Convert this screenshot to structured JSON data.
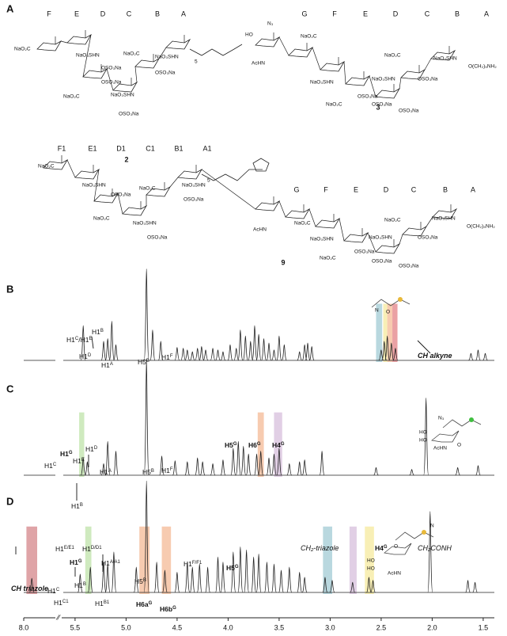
{
  "panel_labels": [
    "A",
    "B",
    "C",
    "D"
  ],
  "structures": [
    {
      "number": "2",
      "rings": [
        "F",
        "E",
        "D",
        "C",
        "B",
        "A"
      ],
      "labels": [
        "NaO₂C",
        "NaO₃SHN",
        "OSO₃Na",
        "NaO₂C",
        "NaO₃SHN",
        "OSO₃Na",
        "NaO₂C",
        "NaO₃SHN",
        "OSO₃Na",
        "OSO₃Na",
        "5"
      ]
    },
    {
      "number": "3",
      "rings": [
        "G",
        "F",
        "E",
        "D",
        "C",
        "B",
        "A"
      ],
      "labels": [
        "N₃",
        "HO",
        "AcHN",
        "NaO₂C",
        "NaO₃SHN",
        "OSO₃Na",
        "NaO₂C",
        "NaO₃SHN",
        "OSO₃Na",
        "NaO₂C",
        "NaO₃SHN",
        "OSO₃Na",
        "O(CH₂)₅NH₂",
        "OSO₃Na"
      ]
    },
    {
      "number": "9",
      "rings": [
        "F1",
        "E1",
        "D1",
        "C1",
        "B1",
        "A1",
        "G",
        "F",
        "E",
        "D",
        "C",
        "B",
        "A"
      ],
      "labels": [
        "NaO₂C",
        "NaO₃SHN",
        "OSO₃Na",
        "NaO₂C",
        "NaO₃SHN",
        "OSO₃Na",
        "NaO₂C",
        "NaO₃SHN",
        "OSO₃Na",
        "5",
        "AcHN",
        "NaO₂C",
        "NaO₃SHN",
        "OSO₃Na",
        "NaO₂C",
        "NaO₃SHN",
        "OSO₃Na",
        "NaO₂C",
        "NaO₃SHN",
        "OSO₃Na",
        "O(CH₂)₅NH₂",
        "OSO₃Na"
      ]
    }
  ],
  "chart_data": {
    "type": "nmr",
    "xlim": [
      1.5,
      8.0
    ],
    "xbreak": [
      7.5,
      5.6
    ],
    "xticks": [
      {
        "value": 8.0,
        "label": "8.0"
      },
      {
        "value": 5.5,
        "label": "5.5"
      },
      {
        "value": 5.0,
        "label": "5.0"
      },
      {
        "value": 4.5,
        "label": "4.5"
      },
      {
        "value": 4.0,
        "label": "4.0"
      },
      {
        "value": 3.5,
        "label": "3.5"
      },
      {
        "value": 3.0,
        "label": "3.0"
      },
      {
        "value": 2.5,
        "label": "2.5"
      },
      {
        "value": 2.0,
        "label": "2.0"
      },
      {
        "value": 1.5,
        "label": "1.5"
      }
    ],
    "spectra": [
      {
        "name": "B",
        "x": [
          5.42,
          5.22,
          5.18,
          5.14,
          5.1,
          4.8,
          4.74,
          4.66,
          4.5,
          4.44,
          4.4,
          4.35,
          4.3,
          4.26,
          4.22,
          4.15,
          4.1,
          4.05,
          3.98,
          3.92,
          3.88,
          3.83,
          3.78,
          3.74,
          3.7,
          3.65,
          3.6,
          3.55,
          3.5,
          3.45,
          3.3,
          3.25,
          3.22,
          3.18,
          2.5,
          2.47,
          2.44,
          2.4,
          2.36,
          1.62,
          1.55,
          1.48
        ],
        "values": [
          40,
          22,
          25,
          45,
          18,
          105,
          35,
          22,
          15,
          14,
          12,
          10,
          14,
          16,
          12,
          14,
          12,
          10,
          18,
          14,
          35,
          28,
          22,
          40,
          30,
          25,
          20,
          12,
          28,
          18,
          10,
          18,
          20,
          16,
          12,
          22,
          28,
          20,
          14,
          8,
          12,
          8
        ],
        "highlights": [
          {
            "x": [
              2.55,
              2.49
            ],
            "color": "#7fb8c4"
          },
          {
            "x": [
              2.48,
              2.44
            ],
            "color": "#f2e27a"
          },
          {
            "x": [
              2.44,
              2.39
            ],
            "color": "#f0a070"
          },
          {
            "x": [
              2.39,
              2.34
            ],
            "color": "#d9535a"
          }
        ],
        "annotations": [
          {
            "parts": [
              "H1",
              "C",
              "/H1",
              "E"
            ]
          },
          {
            "parts": [
              "H1",
              "D"
            ]
          },
          {
            "parts": [
              "H1",
              "B"
            ]
          },
          {
            "parts": [
              "H1",
              "A"
            ]
          },
          {
            "parts": [
              "H5",
              "B"
            ]
          },
          {
            "parts": [
              "H1",
              "F"
            ]
          },
          {
            "parts": [
              "CH alkyne"
            ]
          }
        ],
        "inset_labels": [
          "O",
          "N"
        ]
      },
      {
        "name": "C",
        "x": [
          5.42,
          5.38,
          5.22,
          5.18,
          5.1,
          4.8,
          4.65,
          4.52,
          4.4,
          4.3,
          4.25,
          4.15,
          4.05,
          3.95,
          3.9,
          3.85,
          3.8,
          3.72,
          3.68,
          3.6,
          3.55,
          3.5,
          3.4,
          3.3,
          3.25,
          3.08,
          2.55,
          2.2,
          2.06,
          1.75,
          1.55
        ],
        "values": [
          18,
          14,
          12,
          35,
          25,
          120,
          20,
          15,
          14,
          18,
          14,
          12,
          16,
          28,
          35,
          30,
          22,
          22,
          25,
          18,
          22,
          28,
          12,
          14,
          16,
          25,
          8,
          6,
          80,
          8,
          10
        ],
        "highlights": [
          {
            "x": [
              5.46,
              5.41
            ],
            "color": "#a8d88a"
          },
          {
            "x": [
              3.71,
              3.65
            ],
            "color": "#f0a070"
          },
          {
            "x": [
              3.55,
              3.47
            ],
            "color": "#c9a8cf"
          }
        ],
        "annotations": [
          {
            "parts": [
              "H1",
              "C"
            ]
          },
          {
            "parts": [
              "H1",
              "G"
            ]
          },
          {
            "parts": [
              "H1",
              "E"
            ]
          },
          {
            "parts": [
              "H1",
              "D"
            ]
          },
          {
            "parts": [
              "H1",
              "A"
            ]
          },
          {
            "parts": [
              "H1",
              "B"
            ]
          },
          {
            "parts": [
              "H5",
              "B"
            ]
          },
          {
            "parts": [
              "H1",
              "F"
            ]
          },
          {
            "parts": [
              "H5",
              "G"
            ]
          },
          {
            "parts": [
              "H6",
              "G"
            ]
          },
          {
            "parts": [
              "H4",
              "G"
            ]
          }
        ],
        "inset_labels": [
          "N₃",
          "HO",
          "HO",
          "AcHN",
          "O"
        ]
      },
      {
        "name": "D",
        "x": [
          7.85,
          5.45,
          5.35,
          5.22,
          5.18,
          5.12,
          4.9,
          4.8,
          4.7,
          4.62,
          4.5,
          4.4,
          4.35,
          4.28,
          4.2,
          4.1,
          4.05,
          3.95,
          3.88,
          3.82,
          3.75,
          3.7,
          3.62,
          3.55,
          3.48,
          3.4,
          3.3,
          3.25,
          3.05,
          2.98,
          2.78,
          2.62,
          2.58,
          2.02,
          1.65,
          1.58
        ],
        "values": [
          14,
          18,
          25,
          30,
          28,
          40,
          25,
          110,
          30,
          22,
          20,
          30,
          25,
          28,
          25,
          35,
          30,
          40,
          45,
          42,
          35,
          38,
          30,
          28,
          22,
          25,
          20,
          15,
          15,
          12,
          10,
          15,
          12,
          80,
          12,
          10
        ],
        "highlights": [
          {
            "x": [
              7.95,
              7.75
            ],
            "color": "#c45a5f"
          },
          {
            "x": [
              5.4,
              5.34
            ],
            "color": "#a8d88a"
          },
          {
            "x": [
              4.87,
              4.77
            ],
            "color": "#f0a070"
          },
          {
            "x": [
              4.65,
              4.56
            ],
            "color": "#f0a070"
          },
          {
            "x": [
              3.07,
              2.98
            ],
            "color": "#7fb8c4"
          },
          {
            "x": [
              2.81,
              2.74
            ],
            "color": "#c9a8cf"
          },
          {
            "x": [
              2.66,
              2.57
            ],
            "color": "#f2e27a"
          }
        ],
        "annotations": [
          {
            "parts": [
              "CH triazole"
            ]
          },
          {
            "parts": [
              "H1",
              "E/E1"
            ]
          },
          {
            "parts": [
              "H1",
              "D/D1"
            ]
          },
          {
            "parts": [
              "H1",
              "G"
            ]
          },
          {
            "parts": [
              "H1",
              "C"
            ]
          },
          {
            "parts": [
              "H1",
              "B"
            ]
          },
          {
            "parts": [
              "H1",
              "C1"
            ]
          },
          {
            "parts": [
              "H1",
              "B1"
            ]
          },
          {
            "parts": [
              "H1",
              "A/A1"
            ]
          },
          {
            "parts": [
              "H6a",
              "G"
            ]
          },
          {
            "parts": [
              "H5",
              "B"
            ]
          },
          {
            "parts": [
              "H6b",
              "G"
            ]
          },
          {
            "parts": [
              "H1",
              "F/F1"
            ]
          },
          {
            "parts": [
              "H5",
              "G"
            ]
          },
          {
            "parts": [
              "CH₂-triazole"
            ]
          },
          {
            "parts": [
              "H4",
              "G"
            ]
          },
          {
            "parts": [
              "CH₂CONH"
            ]
          }
        ],
        "inset_labels": [
          "O",
          "N",
          "HO",
          "HO",
          "AcHN"
        ]
      }
    ]
  }
}
